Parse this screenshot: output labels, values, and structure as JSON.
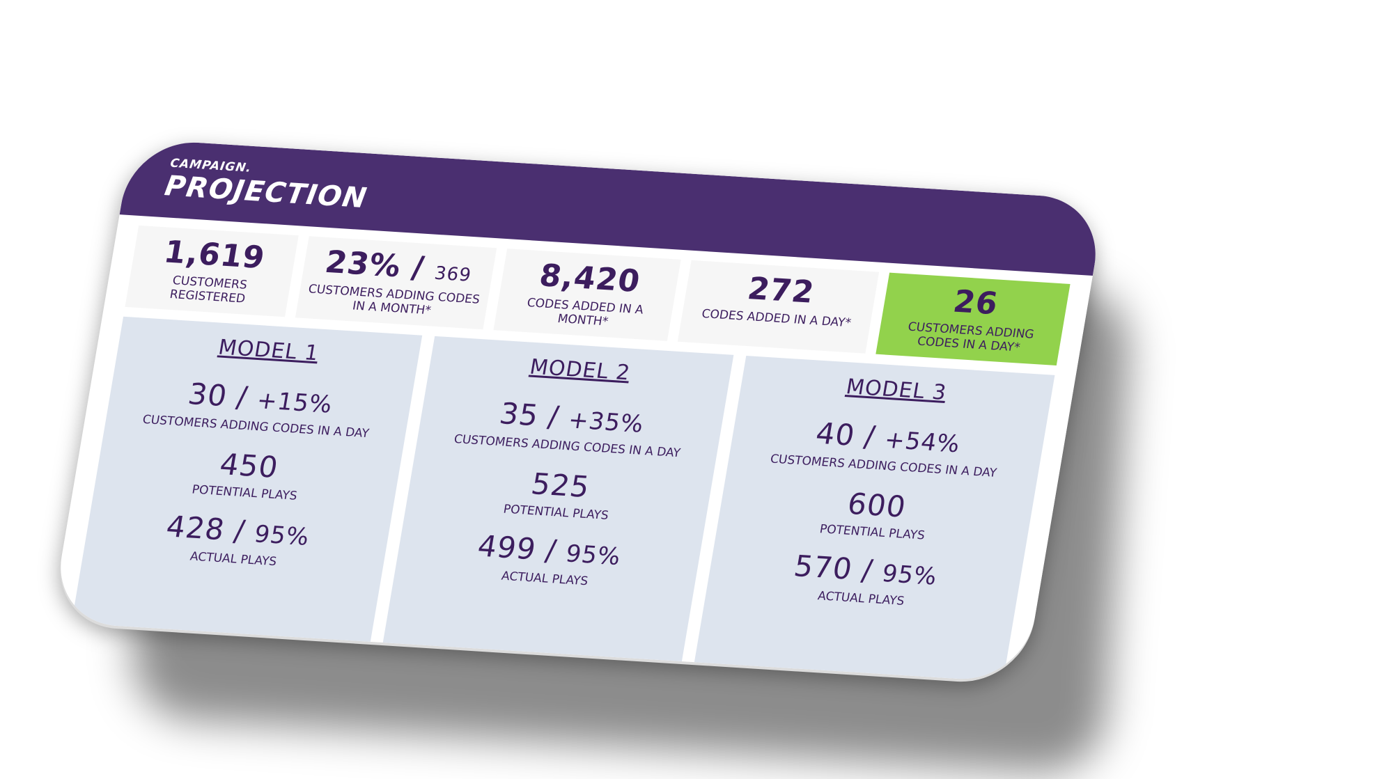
{
  "header": {
    "kicker": "CAMPAIGN.",
    "title": "PROJECTION"
  },
  "stats": [
    {
      "value": "1,619",
      "suffix": "",
      "label": "CUSTOMERS REGISTERED"
    },
    {
      "value": "23% /",
      "suffix": "369",
      "label": "CUSTOMERS ADDING CODES IN A MONTH*"
    },
    {
      "value": "8,420",
      "suffix": "",
      "label": "CODES ADDED IN A MONTH*"
    },
    {
      "value": "272",
      "suffix": "",
      "label": "CODES ADDED IN A DAY*"
    },
    {
      "value": "26",
      "suffix": "",
      "label": "CUSTOMERS ADDING CODES IN A DAY*"
    }
  ],
  "models": [
    {
      "title": "MODEL 1",
      "customers_value": "30 /",
      "customers_pct": "+15%",
      "customers_label": "CUSTOMERS ADDING CODES IN A DAY",
      "potential_value": "450",
      "potential_label": "POTENTIAL PLAYS",
      "actual_value": "428 /",
      "actual_pct": "95%",
      "actual_label": "ACTUAL PLAYS"
    },
    {
      "title": "MODEL 2",
      "customers_value": "35 /",
      "customers_pct": "+35%",
      "customers_label": "CUSTOMERS ADDING CODES IN A DAY",
      "potential_value": "525",
      "potential_label": "POTENTIAL PLAYS",
      "actual_value": "499 /",
      "actual_pct": "95%",
      "actual_label": "ACTUAL PLAYS"
    },
    {
      "title": "MODEL 3",
      "customers_value": "40 /",
      "customers_pct": "+54%",
      "customers_label": "CUSTOMERS ADDING CODES IN A DAY",
      "potential_value": "600",
      "potential_label": "POTENTIAL PLAYS",
      "actual_value": "570 /",
      "actual_pct": "95%",
      "actual_label": "ACTUAL PLAYS"
    }
  ],
  "colors": {
    "header_bg": "#4a2f70",
    "text_purple": "#3c1d5e",
    "highlight_green": "#92d24c",
    "stat_bg": "#f6f6f6",
    "model_bg": "#dde4ee"
  }
}
